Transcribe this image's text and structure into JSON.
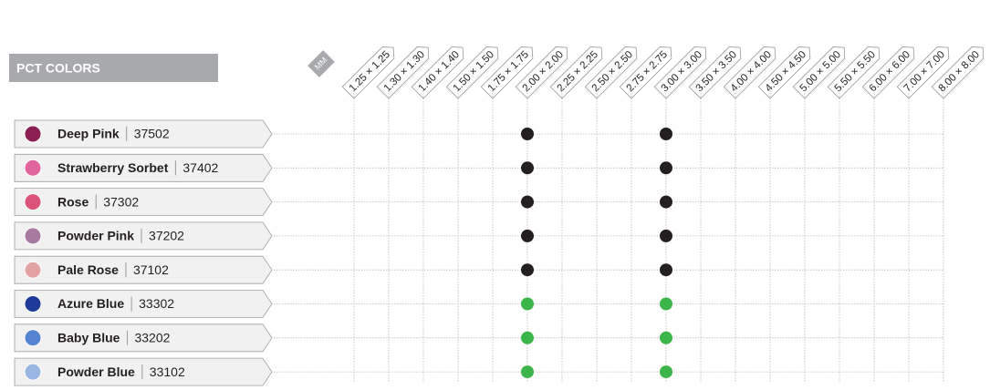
{
  "header": {
    "title": "PCT COLORS",
    "unit": "MM"
  },
  "sizes": [
    "1.25 × 1.25",
    "1.30 × 1.30",
    "1.40 × 1.40",
    "1.50 × 1.50",
    "1.75 × 1.75",
    "2.00 × 2.00",
    "2.25 × 2.25",
    "2.50 × 2.50",
    "2.75 × 2.75",
    "3.00 × 3.00",
    "3.50 × 3.50",
    "4.00 × 4.00",
    "4.50 × 4.50",
    "5.00 × 5.00",
    "5.50 × 5.50",
    "6.00 × 6.00",
    "7.00 × 7.00",
    "8.00 × 8.00"
  ],
  "rows": [
    {
      "name": "Deep Pink",
      "code": "37502",
      "swatch": "#8c1f52",
      "dot_color": "#231f20",
      "available": [
        5,
        9
      ]
    },
    {
      "name": "Strawberry Sorbet",
      "code": "37402",
      "swatch": "#e0659c",
      "dot_color": "#231f20",
      "available": [
        5,
        9
      ]
    },
    {
      "name": "Rose",
      "code": "37302",
      "swatch": "#dc5479",
      "dot_color": "#231f20",
      "available": [
        5,
        9
      ]
    },
    {
      "name": "Powder Pink",
      "code": "37202",
      "swatch": "#a77aa2",
      "dot_color": "#231f20",
      "available": [
        5,
        9
      ]
    },
    {
      "name": "Pale Rose",
      "code": "37102",
      "swatch": "#e3a3a3",
      "dot_color": "#231f20",
      "available": [
        5,
        9
      ]
    },
    {
      "name": "Azure Blue",
      "code": "33302",
      "swatch": "#1f3b9a",
      "dot_color": "#3cb54a",
      "available": [
        5,
        9
      ]
    },
    {
      "name": "Baby Blue",
      "code": "33202",
      "swatch": "#5584d2",
      "dot_color": "#3cb54a",
      "available": [
        5,
        9
      ]
    },
    {
      "name": "Powder Blue",
      "code": "33102",
      "swatch": "#9ab6e2",
      "dot_color": "#3cb54a",
      "available": [
        5,
        9
      ]
    }
  ]
}
